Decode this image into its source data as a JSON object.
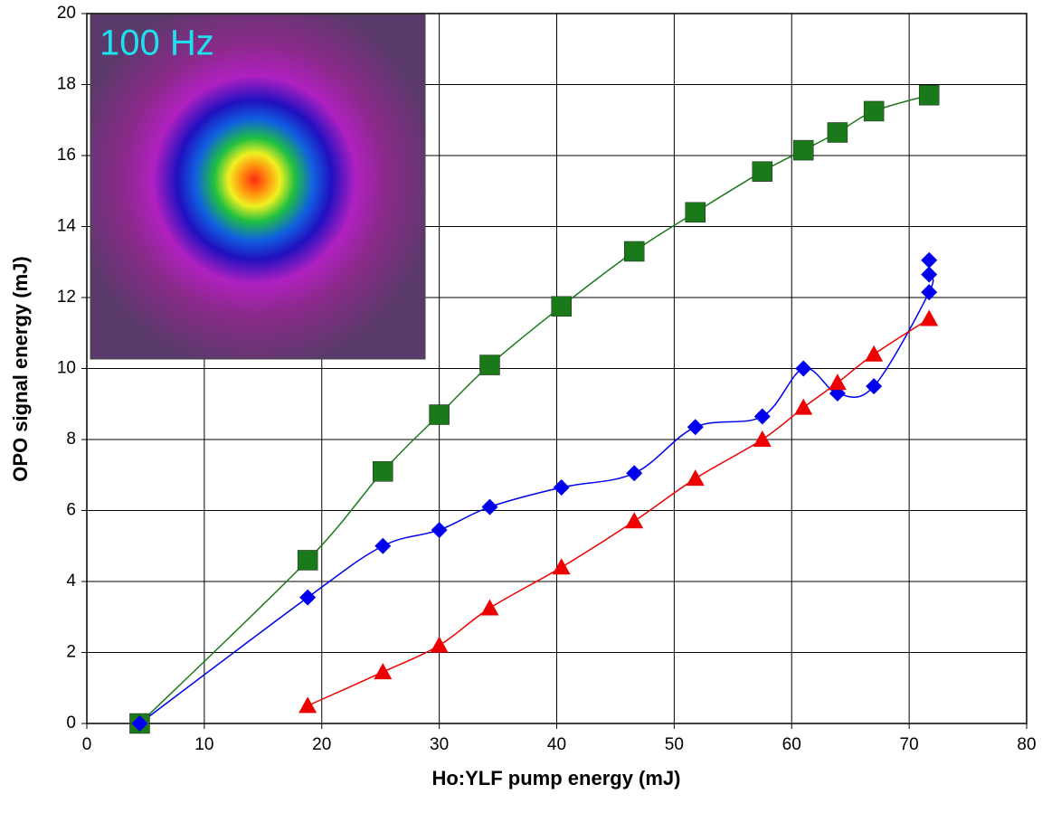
{
  "chart_data": {
    "type": "line",
    "inset_label": "100 Hz",
    "x_label": "Ho:YLF pump energy (mJ)",
    "y_label": "OPO signal energy (mJ)",
    "xlim": [
      0,
      80
    ],
    "xticks": [
      0,
      10,
      20,
      30,
      40,
      50,
      60,
      70,
      80
    ],
    "ylim": [
      0,
      20
    ],
    "yticks": [
      0,
      2,
      4,
      6,
      8,
      10,
      12,
      14,
      16,
      18,
      20
    ],
    "grid": true,
    "series": [
      {
        "color": "#1a7a1a",
        "marker": "square",
        "x": [
          4.5,
          18.8,
          25.2,
          30,
          34.3,
          40.4,
          46.6,
          51.8,
          57.5,
          61,
          63.9,
          67,
          71.7
        ],
        "values": [
          0,
          4.6,
          7.1,
          8.7,
          10.1,
          11.75,
          13.3,
          14.4,
          15.55,
          16.15,
          16.65,
          17.25,
          17.7
        ]
      },
      {
        "color": "#0000ee",
        "marker": "diamond",
        "x": [
          4.5,
          18.8,
          25.2,
          30,
          34.3,
          40.4,
          46.6,
          51.8,
          57.5,
          61,
          63.9,
          67,
          71.7,
          71.7,
          71.7
        ],
        "values": [
          0,
          3.55,
          5.0,
          5.45,
          6.1,
          6.65,
          7.05,
          8.35,
          8.65,
          10.0,
          9.3,
          9.5,
          12.15,
          12.65,
          13.05
        ]
      },
      {
        "color": "#ee0000",
        "marker": "triangle",
        "x": [
          18.8,
          25.2,
          30,
          34.3,
          40.4,
          46.6,
          51.8,
          57.5,
          61,
          63.9,
          67,
          71.7
        ],
        "values": [
          0.5,
          1.45,
          2.2,
          3.25,
          4.4,
          5.7,
          6.9,
          8.0,
          8.9,
          9.6,
          10.4,
          11.4
        ]
      }
    ]
  }
}
